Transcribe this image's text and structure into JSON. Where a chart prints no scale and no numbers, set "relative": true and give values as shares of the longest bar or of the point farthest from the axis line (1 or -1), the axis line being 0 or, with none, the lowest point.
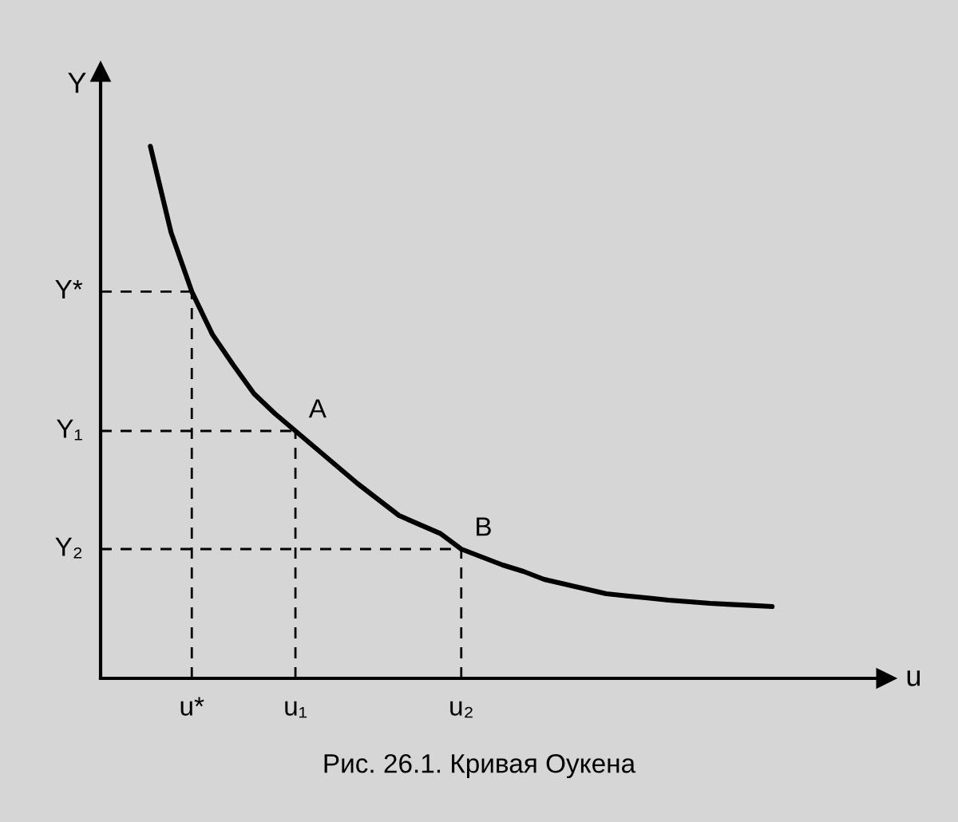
{
  "chart_data": {
    "type": "line",
    "relative": true,
    "title": "Рис. 26.1. Кривая Оукена",
    "xlabel": "u",
    "ylabel": "Y",
    "categories": [
      null,
      null,
      "u*",
      null,
      null,
      null,
      null,
      "u₁",
      null,
      null,
      null,
      null,
      null,
      null,
      null,
      "u₂",
      null,
      null,
      null,
      null,
      null,
      null,
      null,
      null,
      null,
      null,
      null,
      null,
      null,
      null,
      null
    ],
    "series": [
      {
        "color": "#000000",
        "values": [
          1.0,
          0.838,
          0.727,
          0.646,
          0.589,
          0.535,
          0.498,
          0.465,
          0.432,
          0.399,
          0.366,
          0.336,
          0.306,
          0.289,
          0.272,
          0.243,
          0.228,
          0.213,
          0.201,
          0.186,
          0.177,
          0.168,
          0.159,
          0.155,
          0.151,
          0.147,
          0.144,
          0.141,
          0.139,
          0.137,
          0.135
        ]
      }
    ],
    "ref_lines": [
      {
        "axis": "x",
        "value": "u*",
        "line_style": "dashed"
      },
      {
        "axis": "x",
        "value": "u₁",
        "line_style": "dashed"
      },
      {
        "axis": "x",
        "value": "u₂",
        "line_style": "dashed"
      },
      {
        "axis": "y",
        "value": 0.727,
        "label": "Y*",
        "line_style": "dashed"
      },
      {
        "axis": "y",
        "value": 0.465,
        "label": "Y₁",
        "line_style": "dashed"
      },
      {
        "axis": "y",
        "value": 0.243,
        "label": "Y₂",
        "line_style": "dashed"
      }
    ],
    "annotations": [
      {
        "text": "A",
        "x": "u₁",
        "y": 0.465
      },
      {
        "text": "B",
        "x": "u₂",
        "y": 0.243
      }
    ],
    "marker": "none",
    "line_style": "solid"
  }
}
